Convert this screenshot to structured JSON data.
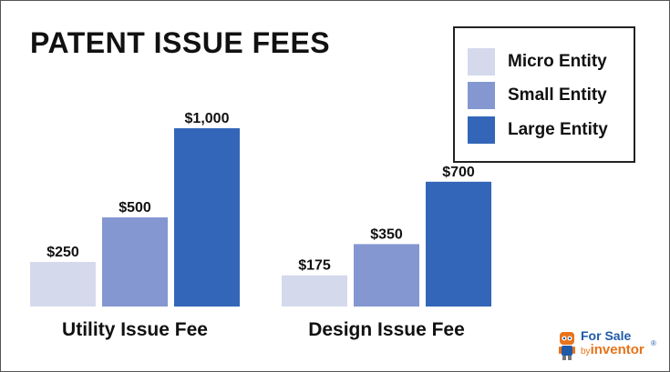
{
  "chart_data": {
    "type": "bar",
    "title": "PATENT ISSUE FEES",
    "categories": [
      "Utility Issue Fee",
      "Design Issue Fee"
    ],
    "series": [
      {
        "name": "Micro Entity",
        "color": "#d5d9ec",
        "values": [
          250,
          175
        ],
        "labels": [
          "$250",
          "$175"
        ]
      },
      {
        "name": "Small Entity",
        "color": "#8497d0",
        "values": [
          500,
          350
        ],
        "labels": [
          "$500",
          "$350"
        ]
      },
      {
        "name": "Large Entity",
        "color": "#3366b8",
        "values": [
          1000,
          700
        ],
        "labels": [
          "$1,000",
          "$700"
        ]
      }
    ],
    "ylim": [
      0,
      1000
    ],
    "legend": "top-right",
    "grid": false
  },
  "brand": {
    "line1": "For Sale",
    "line2_prefix": "by",
    "line2": "inventor",
    "mark": "®",
    "icon": "robot-icon"
  }
}
